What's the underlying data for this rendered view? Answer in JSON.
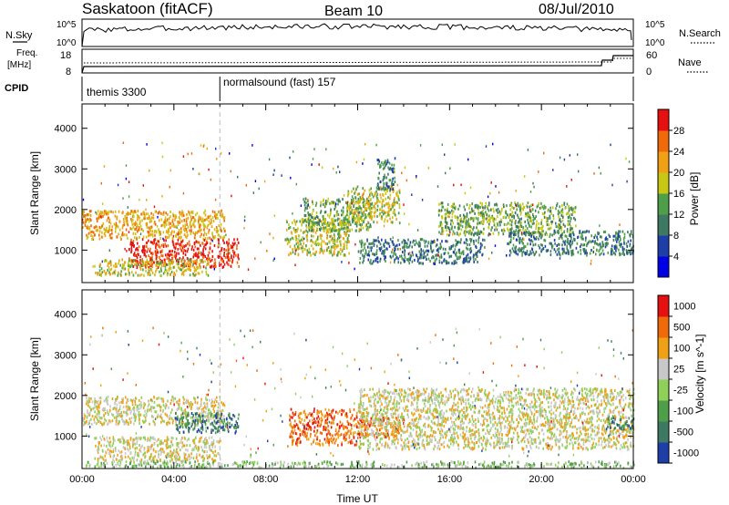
{
  "header": {
    "station": "Saskatoon (fitACF)",
    "beam": "Beam 10",
    "date": "08/Jul/2010"
  },
  "top_panels": {
    "nsky_label": "N.Sky",
    "nsky_ticks": [
      "10^5",
      "10^0"
    ],
    "nsearch_label": "N.Search",
    "nsearch_ticks": [
      "10^5",
      "10^0"
    ],
    "freq_label_1": "Freq.",
    "freq_label_2": "[MHz]",
    "freq_ticks": [
      "18",
      "8"
    ],
    "nave_label": "Nave",
    "nave_ticks": [
      "60",
      "0"
    ],
    "cpid_label": "CPID",
    "cpid_modes": [
      {
        "name": "themis 3300",
        "start_hour": 0
      },
      {
        "name": "normalsound (fast) 157",
        "start_hour": 6.0
      }
    ]
  },
  "chart_data": [
    {
      "type": "heatmap",
      "title": "",
      "ylabel": "Slant Range [km]",
      "xlabel": "",
      "xlim": [
        0,
        24
      ],
      "ylim": [
        200,
        4600
      ],
      "ytick_labels": [
        "1000",
        "2000",
        "3000",
        "4000"
      ],
      "colorbar": {
        "label": "Power [dB]",
        "ticks": [
          "4",
          "8",
          "12",
          "16",
          "20",
          "24",
          "28"
        ],
        "colors": [
          "#0000e6",
          "#1f3fa8",
          "#3e7a63",
          "#4f9e4a",
          "#c8c814",
          "#f0a014",
          "#f06a0a",
          "#e61010"
        ]
      },
      "echo_regions": [
        {
          "t0": 0.0,
          "t1": 6.2,
          "r0": 1300,
          "r1": 2000,
          "level": 5
        },
        {
          "t0": 2.0,
          "t1": 6.8,
          "r0": 600,
          "r1": 1300,
          "level": 7
        },
        {
          "t0": 0.5,
          "t1": 5.5,
          "r0": 400,
          "r1": 800,
          "level": 4
        },
        {
          "t0": 8.8,
          "t1": 11.6,
          "r0": 900,
          "r1": 1800,
          "level": 4
        },
        {
          "t0": 9.6,
          "t1": 12.6,
          "r0": 1500,
          "r1": 2300,
          "level": 3
        },
        {
          "t0": 11.5,
          "t1": 13.8,
          "r0": 1700,
          "r1": 2600,
          "level": 4
        },
        {
          "t0": 12.0,
          "t1": 17.5,
          "r0": 700,
          "r1": 1300,
          "level": 2
        },
        {
          "t0": 15.5,
          "t1": 21.5,
          "r0": 1400,
          "r1": 2200,
          "level": 3
        },
        {
          "t0": 18.5,
          "t1": 24.0,
          "r0": 900,
          "r1": 1500,
          "level": 2
        },
        {
          "t0": 12.8,
          "t1": 13.6,
          "r0": 2500,
          "r1": 3300,
          "level": 2
        }
      ]
    },
    {
      "type": "heatmap",
      "title": "",
      "ylabel": "Slant Range [km]",
      "xlabel": "Time UT",
      "xlim": [
        0,
        24
      ],
      "ylim": [
        200,
        4600
      ],
      "xtick_labels": [
        "00:00",
        "04:00",
        "08:00",
        "12:00",
        "16:00",
        "20:00",
        "00:00"
      ],
      "ytick_labels": [
        "1000",
        "2000",
        "3000",
        "4000"
      ],
      "colorbar": {
        "label": "Velocity [m s^-1]",
        "ticks": [
          "1000",
          "500",
          "100",
          "25",
          "-25",
          "-100",
          "-500",
          "-1000"
        ],
        "colors": [
          "#1f3fa8",
          "#3e7a63",
          "#4f9e4a",
          "#8fd05a",
          "#c8c8c8",
          "#f0a014",
          "#f06a0a",
          "#e61010"
        ]
      },
      "echo_regions": [
        {
          "t0": 0.0,
          "t1": 6.2,
          "r0": 1300,
          "r1": 2000,
          "level": 4
        },
        {
          "t0": 4.0,
          "t1": 6.8,
          "r0": 1100,
          "r1": 1600,
          "level": 1
        },
        {
          "t0": 0.5,
          "t1": 6.0,
          "r0": 400,
          "r1": 1000,
          "level": 4
        },
        {
          "t0": 9.0,
          "t1": 12.0,
          "r0": 800,
          "r1": 1700,
          "level": 6
        },
        {
          "t0": 12.0,
          "t1": 14.0,
          "r0": 1000,
          "r1": 1500,
          "level": 6
        },
        {
          "t0": 12.0,
          "t1": 24.0,
          "r0": 700,
          "r1": 2200,
          "level": 4
        },
        {
          "t0": 22.8,
          "t1": 24.0,
          "r0": 1200,
          "r1": 1500,
          "level": 1
        },
        {
          "t0": 0.0,
          "t1": 24.0,
          "r0": 250,
          "r1": 400,
          "level": 3
        }
      ]
    }
  ]
}
